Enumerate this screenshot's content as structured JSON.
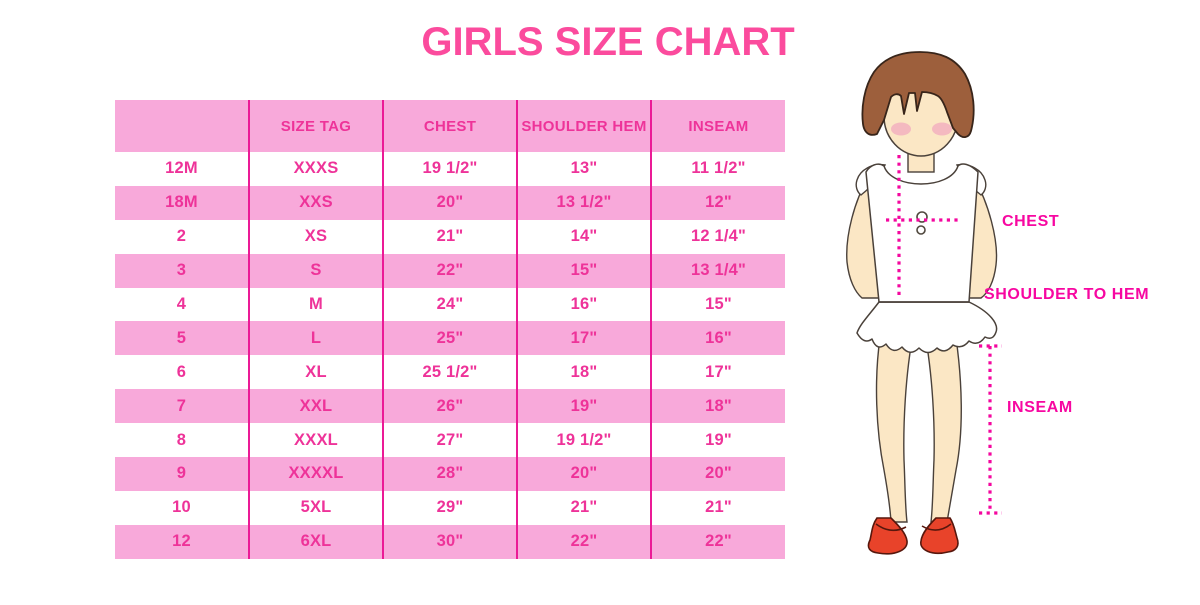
{
  "title": "GIRLS SIZE CHART",
  "colors": {
    "title_pink": "#FB4B9D",
    "row_pink": "#F8A9DA",
    "table_text_pink": "#EE3399",
    "divider_magenta": "#EB1A96",
    "label_magenta": "#F707A1",
    "dotted_line_magenta": "#F4079F",
    "hair_brown": "#9D5F3C",
    "skin": "#FBE7C5",
    "blush": "#F2A9BE",
    "shoe_red": "#E8432A",
    "garment_white": "#FFFFFF"
  },
  "chart_data": {
    "type": "table",
    "title": "GIRLS SIZE CHART",
    "columns": [
      "",
      "SIZE TAG",
      "CHEST",
      "SHOULDER HEM",
      "INSEAM"
    ],
    "rows": [
      [
        "12M",
        "XXXS",
        "19 1/2\"",
        "13\"",
        "11 1/2\""
      ],
      [
        "18M",
        "XXS",
        "20\"",
        "13 1/2\"",
        "12\""
      ],
      [
        "2",
        "XS",
        "21\"",
        "14\"",
        "12 1/4\""
      ],
      [
        "3",
        "S",
        "22\"",
        "15\"",
        "13 1/4\""
      ],
      [
        "4",
        "M",
        "24\"",
        "16\"",
        "15\""
      ],
      [
        "5",
        "L",
        "25\"",
        "17\"",
        "16\""
      ],
      [
        "6",
        "XL",
        "25 1/2\"",
        "18\"",
        "17\""
      ],
      [
        "7",
        "XXL",
        "26\"",
        "19\"",
        "18\""
      ],
      [
        "8",
        "XXXL",
        "27\"",
        "19 1/2\"",
        "19\""
      ],
      [
        "9",
        "XXXXL",
        "28\"",
        "20\"",
        "20\""
      ],
      [
        "10",
        "5XL",
        "29\"",
        "21\"",
        "21\""
      ],
      [
        "12",
        "6XL",
        "30\"",
        "22\"",
        "22\""
      ]
    ],
    "layout_hints": "first data row white, shading alternates white/pink; magenta column dividers; header row pink"
  },
  "figure": {
    "chest_label": "CHEST",
    "shoulder_to_hem_label": "SHOULDER TO HEM",
    "inseam_label": "INSEAM"
  }
}
